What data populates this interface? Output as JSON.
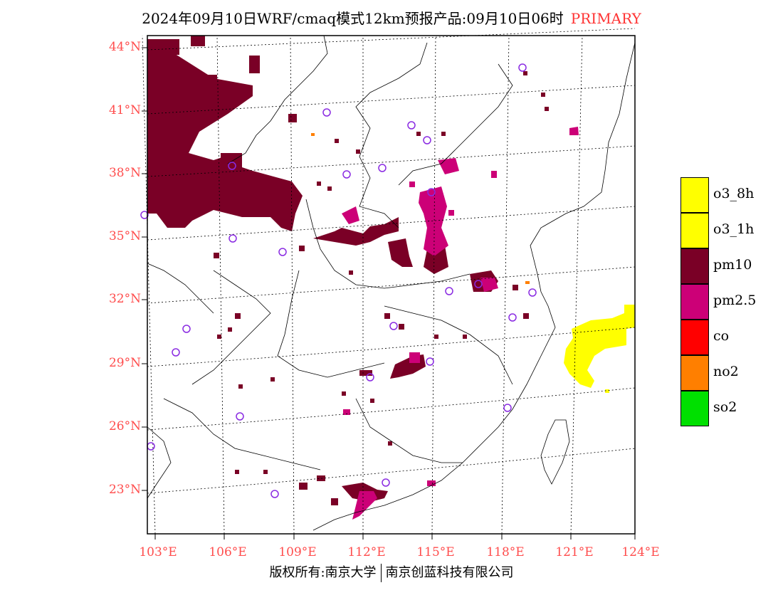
{
  "title": {
    "main": "2024年09月10日WRF/cmaq模式12km预报产品:09月10日06时",
    "tag": "PRIMARY"
  },
  "axes": {
    "lat_labels": [
      "44°N",
      "41°N",
      "38°N",
      "35°N",
      "32°N",
      "29°N",
      "26°N",
      "23°N"
    ],
    "lon_labels": [
      "103°E",
      "106°E",
      "109°E",
      "112°E",
      "115°E",
      "118°E",
      "121°E",
      "124°E"
    ]
  },
  "legend": [
    {
      "label": "o3_8h",
      "color": "#ffff00"
    },
    {
      "label": "o3_1h",
      "color": "#ffff00"
    },
    {
      "label": "pm10",
      "color": "#7a0026"
    },
    {
      "label": "pm2.5",
      "color": "#cc0077"
    },
    {
      "label": "co",
      "color": "#ff0000"
    },
    {
      "label": "no2",
      "color": "#ff7f00"
    },
    {
      "label": "so2",
      "color": "#00e000"
    }
  ],
  "footer": {
    "left": "版权所有:南京大学",
    "right": "南京创蓝科技有限公司"
  },
  "colors": {
    "axis_label": "#ff4d4d",
    "title_tag": "#ff3333",
    "station_marker": "#8a2be2"
  }
}
